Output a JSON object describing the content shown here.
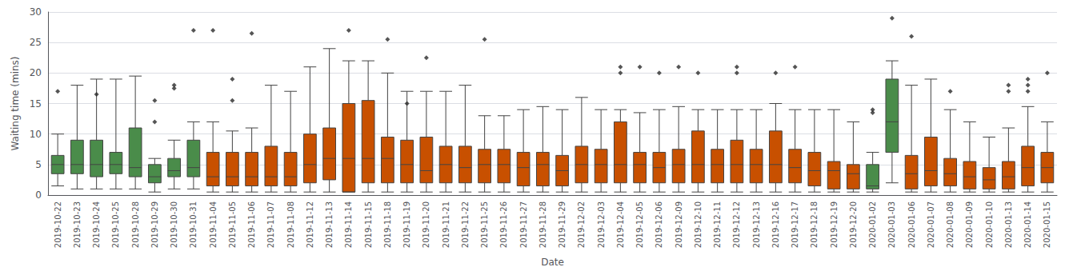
{
  "chart_data": {
    "type": "boxplot",
    "xlabel": "Date",
    "ylabel": "Waiting time (mins)",
    "categories": [
      "2019-10-22",
      "2019-10-23",
      "2019-10-24",
      "2019-10-25",
      "2019-10-28",
      "2019-10-29",
      "2019-10-30",
      "2019-10-31",
      "2019-11-04",
      "2019-11-05",
      "2019-11-06",
      "2019-11-07",
      "2019-11-08",
      "2019-11-12",
      "2019-11-13",
      "2019-11-14",
      "2019-11-15",
      "2019-11-18",
      "2019-11-19",
      "2019-11-20",
      "2019-11-21",
      "2019-11-22",
      "2019-11-25",
      "2019-11-26",
      "2019-11-27",
      "2019-11-28",
      "2019-11-29",
      "2019-12-02",
      "2019-12-03",
      "2019-12-04",
      "2019-12-05",
      "2019-12-06",
      "2019-12-09",
      "2019-12-10",
      "2019-12-11",
      "2019-12-12",
      "2019-12-13",
      "2019-12-16",
      "2019-12-17",
      "2019-12-18",
      "2019-12-19",
      "2019-12-20",
      "2020-01-02",
      "2020-01-03",
      "2020-01-06",
      "2020-01-07",
      "2020-01-08",
      "2020-01-09",
      "2020-01-10",
      "2020-01-13",
      "2020-01-14",
      "2020-01-15"
    ],
    "boxes": [
      {
        "whislo": 1.5,
        "q1": 3.5,
        "median": 5.0,
        "q3": 6.5,
        "whishi": 10.0,
        "fliers": [
          17.0
        ]
      },
      {
        "whislo": 1.0,
        "q1": 3.5,
        "median": 5.0,
        "q3": 9.0,
        "whishi": 18.0,
        "fliers": []
      },
      {
        "whislo": 1.0,
        "q1": 3.0,
        "median": 5.0,
        "q3": 9.0,
        "whishi": 19.0,
        "fliers": [
          16.5
        ]
      },
      {
        "whislo": 1.0,
        "q1": 3.5,
        "median": 5.0,
        "q3": 7.0,
        "whishi": 19.0,
        "fliers": []
      },
      {
        "whislo": 1.0,
        "q1": 3.0,
        "median": 4.5,
        "q3": 11.0,
        "whishi": 19.5,
        "fliers": []
      },
      {
        "whislo": 0.5,
        "q1": 2.0,
        "median": 3.0,
        "q3": 5.0,
        "whishi": 6.0,
        "fliers": [
          12.0,
          15.5
        ]
      },
      {
        "whislo": 1.0,
        "q1": 3.0,
        "median": 4.0,
        "q3": 6.0,
        "whishi": 9.0,
        "fliers": [
          17.5,
          18.0
        ]
      },
      {
        "whislo": 1.0,
        "q1": 3.0,
        "median": 4.5,
        "q3": 9.0,
        "whishi": 12.0,
        "fliers": [
          27.0
        ]
      },
      {
        "whislo": 0.5,
        "q1": 1.5,
        "median": 3.0,
        "q3": 7.0,
        "whishi": 12.0,
        "fliers": [
          27.0
        ]
      },
      {
        "whislo": 0.5,
        "q1": 1.5,
        "median": 3.0,
        "q3": 7.0,
        "whishi": 10.5,
        "fliers": [
          15.5,
          19.0
        ]
      },
      {
        "whislo": 0.5,
        "q1": 1.5,
        "median": 3.0,
        "q3": 7.0,
        "whishi": 11.0,
        "fliers": [
          26.5
        ]
      },
      {
        "whislo": 0.5,
        "q1": 1.5,
        "median": 3.0,
        "q3": 8.0,
        "whishi": 18.0,
        "fliers": []
      },
      {
        "whislo": 0.5,
        "q1": 1.5,
        "median": 3.0,
        "q3": 7.0,
        "whishi": 17.0,
        "fliers": []
      },
      {
        "whislo": 0.5,
        "q1": 2.0,
        "median": 5.0,
        "q3": 10.0,
        "whishi": 21.0,
        "fliers": []
      },
      {
        "whislo": 0.5,
        "q1": 2.5,
        "median": 6.0,
        "q3": 11.0,
        "whishi": 24.0,
        "fliers": []
      },
      {
        "whislo": 0.5,
        "q1": 0.5,
        "median": 6.0,
        "q3": 15.0,
        "whishi": 22.0,
        "fliers": [
          27.0
        ]
      },
      {
        "whislo": 0.5,
        "q1": 2.0,
        "median": 6.0,
        "q3": 15.5,
        "whishi": 22.0,
        "fliers": []
      },
      {
        "whislo": 0.5,
        "q1": 2.0,
        "median": 6.0,
        "q3": 9.5,
        "whishi": 20.0,
        "fliers": [
          25.5
        ]
      },
      {
        "whislo": 0.5,
        "q1": 2.0,
        "median": 5.0,
        "q3": 9.0,
        "whishi": 17.0,
        "fliers": [
          15.0
        ]
      },
      {
        "whislo": 0.5,
        "q1": 2.0,
        "median": 4.0,
        "q3": 9.5,
        "whishi": 17.0,
        "fliers": [
          22.5
        ]
      },
      {
        "whislo": 0.5,
        "q1": 2.0,
        "median": 5.0,
        "q3": 8.0,
        "whishi": 17.0,
        "fliers": []
      },
      {
        "whislo": 0.5,
        "q1": 2.0,
        "median": 4.5,
        "q3": 8.0,
        "whishi": 18.0,
        "fliers": []
      },
      {
        "whislo": 0.5,
        "q1": 2.0,
        "median": 5.0,
        "q3": 7.5,
        "whishi": 13.0,
        "fliers": [
          25.5
        ]
      },
      {
        "whislo": 0.5,
        "q1": 2.0,
        "median": 5.0,
        "q3": 7.5,
        "whishi": 13.0,
        "fliers": []
      },
      {
        "whislo": 0.5,
        "q1": 1.5,
        "median": 4.5,
        "q3": 7.0,
        "whishi": 14.0,
        "fliers": []
      },
      {
        "whislo": 0.5,
        "q1": 1.5,
        "median": 5.0,
        "q3": 7.0,
        "whishi": 14.5,
        "fliers": []
      },
      {
        "whislo": 0.5,
        "q1": 1.5,
        "median": 4.0,
        "q3": 6.5,
        "whishi": 14.0,
        "fliers": []
      },
      {
        "whislo": 0.5,
        "q1": 2.0,
        "median": 5.0,
        "q3": 8.0,
        "whishi": 16.0,
        "fliers": []
      },
      {
        "whislo": 0.5,
        "q1": 2.0,
        "median": 5.0,
        "q3": 7.5,
        "whishi": 14.0,
        "fliers": []
      },
      {
        "whislo": 0.5,
        "q1": 2.0,
        "median": 5.0,
        "q3": 12.0,
        "whishi": 14.0,
        "fliers": [
          20.0,
          21.0
        ]
      },
      {
        "whislo": 0.5,
        "q1": 2.0,
        "median": 5.0,
        "q3": 7.0,
        "whishi": 13.5,
        "fliers": [
          21.0
        ]
      },
      {
        "whislo": 0.5,
        "q1": 2.0,
        "median": 4.5,
        "q3": 7.0,
        "whishi": 14.0,
        "fliers": [
          20.0
        ]
      },
      {
        "whislo": 0.5,
        "q1": 2.0,
        "median": 5.0,
        "q3": 7.5,
        "whishi": 14.5,
        "fliers": [
          21.0
        ]
      },
      {
        "whislo": 0.5,
        "q1": 2.0,
        "median": 5.0,
        "q3": 10.5,
        "whishi": 14.0,
        "fliers": [
          20.0
        ]
      },
      {
        "whislo": 0.5,
        "q1": 2.0,
        "median": 5.0,
        "q3": 7.5,
        "whishi": 14.0,
        "fliers": []
      },
      {
        "whislo": 0.5,
        "q1": 2.0,
        "median": 5.0,
        "q3": 9.0,
        "whishi": 14.0,
        "fliers": [
          20.0,
          21.0
        ]
      },
      {
        "whislo": 0.5,
        "q1": 2.0,
        "median": 5.0,
        "q3": 7.5,
        "whishi": 14.0,
        "fliers": []
      },
      {
        "whislo": 0.5,
        "q1": 2.0,
        "median": 5.0,
        "q3": 10.5,
        "whishi": 15.0,
        "fliers": [
          20.0
        ]
      },
      {
        "whislo": 0.5,
        "q1": 2.0,
        "median": 4.5,
        "q3": 7.5,
        "whishi": 14.0,
        "fliers": [
          21.0
        ]
      },
      {
        "whislo": 0.5,
        "q1": 1.5,
        "median": 4.0,
        "q3": 7.0,
        "whishi": 14.0,
        "fliers": []
      },
      {
        "whislo": 0.5,
        "q1": 1.0,
        "median": 4.0,
        "q3": 5.5,
        "whishi": 14.0,
        "fliers": []
      },
      {
        "whislo": 0.5,
        "q1": 1.0,
        "median": 3.5,
        "q3": 5.0,
        "whishi": 12.0,
        "fliers": []
      },
      {
        "whislo": 0.5,
        "q1": 1.0,
        "median": 1.5,
        "q3": 5.0,
        "whishi": 7.0,
        "fliers": [
          13.5,
          14.0
        ]
      },
      {
        "whislo": 2.0,
        "q1": 7.0,
        "median": 12.0,
        "q3": 19.0,
        "whishi": 22.0,
        "fliers": [
          29.0
        ]
      },
      {
        "whislo": 0.5,
        "q1": 1.0,
        "median": 3.5,
        "q3": 6.5,
        "whishi": 18.0,
        "fliers": [
          26.0
        ]
      },
      {
        "whislo": 0.5,
        "q1": 1.5,
        "median": 4.0,
        "q3": 9.5,
        "whishi": 19.0,
        "fliers": []
      },
      {
        "whislo": 0.5,
        "q1": 1.5,
        "median": 3.5,
        "q3": 6.0,
        "whishi": 14.0,
        "fliers": [
          17.0
        ]
      },
      {
        "whislo": 0.5,
        "q1": 1.0,
        "median": 3.0,
        "q3": 5.5,
        "whishi": 12.0,
        "fliers": []
      },
      {
        "whislo": 0.5,
        "q1": 1.0,
        "median": 2.5,
        "q3": 4.5,
        "whishi": 9.5,
        "fliers": []
      },
      {
        "whislo": 0.5,
        "q1": 1.0,
        "median": 3.0,
        "q3": 5.5,
        "whishi": 11.0,
        "fliers": [
          17.0,
          18.0
        ]
      },
      {
        "whislo": 0.5,
        "q1": 1.5,
        "median": 4.5,
        "q3": 8.0,
        "whishi": 14.5,
        "fliers": [
          17.0,
          18.0,
          19.0
        ]
      },
      {
        "whislo": 0.5,
        "q1": 2.0,
        "median": 4.5,
        "q3": 7.0,
        "whishi": 12.0,
        "fliers": [
          20.0
        ]
      }
    ],
    "colors": [
      "#4a8c4a",
      "#4a8c4a",
      "#4a8c4a",
      "#4a8c4a",
      "#4a8c4a",
      "#4a8c4a",
      "#4a8c4a",
      "#4a8c4a",
      "#c85000",
      "#c85000",
      "#c85000",
      "#c85000",
      "#c85000",
      "#c85000",
      "#c85000",
      "#c85000",
      "#c85000",
      "#c85000",
      "#c85000",
      "#c85000",
      "#c85000",
      "#c85000",
      "#c85000",
      "#c85000",
      "#c85000",
      "#c85000",
      "#c85000",
      "#c85000",
      "#c85000",
      "#c85000",
      "#c85000",
      "#c85000",
      "#c85000",
      "#c85000",
      "#c85000",
      "#c85000",
      "#c85000",
      "#c85000",
      "#c85000",
      "#c85000",
      "#c85000",
      "#c85000",
      "#4a8c4a",
      "#4a8c4a",
      "#c85000",
      "#c85000",
      "#c85000",
      "#c85000",
      "#c85000",
      "#c85000",
      "#c85000",
      "#c85000"
    ],
    "marker": "diamond",
    "ylim": [
      0,
      30
    ],
    "yticks": [
      0,
      5,
      10,
      15,
      20,
      25,
      30
    ],
    "grid": true
  }
}
